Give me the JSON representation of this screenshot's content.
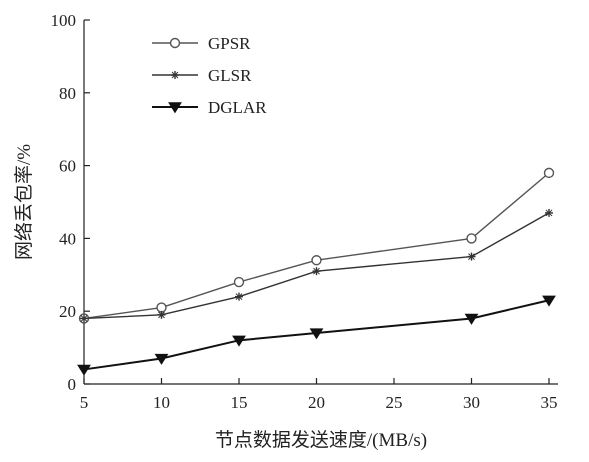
{
  "chart_data": {
    "type": "line",
    "title": "",
    "xlabel": "节点数据发送速度/(MB/s)",
    "ylabel": "网络丢包率/%",
    "x_ticks": [
      "5",
      "10",
      "15",
      "20",
      "25",
      "30",
      "35"
    ],
    "y_ticks": [
      "0",
      "20",
      "40",
      "60",
      "80",
      "100"
    ],
    "xlim": [
      5,
      35
    ],
    "ylim": [
      0,
      100
    ],
    "grid": false,
    "legend_position": "top-left",
    "x": [
      5,
      10,
      15,
      20,
      30,
      35
    ],
    "series": [
      {
        "name": "GPSR",
        "marker": "open-circle",
        "color": "#555555",
        "values": [
          18,
          21,
          28,
          34,
          40,
          58
        ]
      },
      {
        "name": "GLSR",
        "marker": "plus",
        "color": "#333333",
        "values": [
          18,
          19,
          24,
          31,
          35,
          47
        ]
      },
      {
        "name": "DGLAR",
        "marker": "filled-triangle-down",
        "color": "#111111",
        "values": [
          4,
          7,
          12,
          14,
          18,
          23
        ]
      }
    ]
  }
}
